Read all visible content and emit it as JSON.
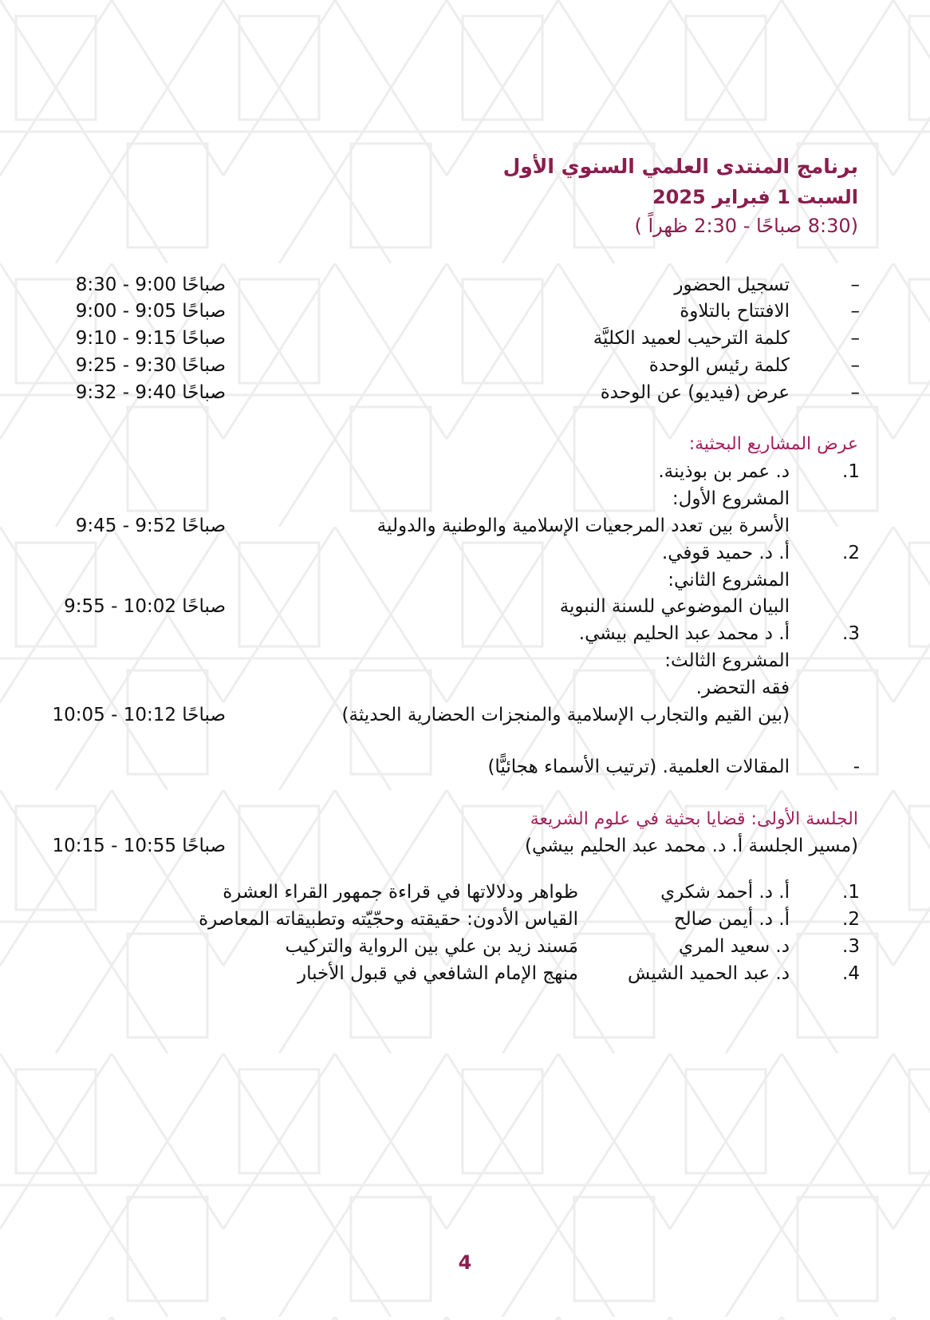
{
  "header": {
    "title": "برنامج المنتدى العلمي السنوي الأول",
    "date": "السبت 1 فبراير 2025",
    "hours": "(8:30 صباحًا - 2:30 ظهراً )"
  },
  "opening": [
    {
      "mark": "–",
      "label": "تسجيل الحضور",
      "time": "8:30 - 9:00 صباحًا"
    },
    {
      "mark": "–",
      "label": "الافتتاح بالتلاوة",
      "time": "9:00 - 9:05 صباحًا"
    },
    {
      "mark": "–",
      "label": "كلمة الترحيب لعميد الكليَّة",
      "time": "9:10 - 9:15 صباحًا"
    },
    {
      "mark": "–",
      "label": "كلمة رئيس الوحدة",
      "time": "9:25 - 9:30 صباحًا"
    },
    {
      "mark": "–",
      "label": "عرض (فيديو) عن الوحدة",
      "time": "9:32 - 9:40 صباحًا"
    }
  ],
  "projects": {
    "heading": "عرض المشاريع البحثية:",
    "items": [
      {
        "num": "1.",
        "presenter": "د. عمر بن بوذينة.",
        "project_label": "المشروع الأول:",
        "title_lines": [
          "الأسرة بين تعدد المرجعيات الإسلامية والوطنية والدولية"
        ],
        "time": "9:45 - 9:52 صباحًا"
      },
      {
        "num": "2.",
        "presenter": "أ. د. حميد قوفي.",
        "project_label": "المشروع الثاني:",
        "title_lines": [
          "البيان الموضوعي للسنة النبوية"
        ],
        "time": "9:55 - 10:02 صباحًا"
      },
      {
        "num": "3.",
        "presenter": "أ. د محمد عبد الحليم بيشي.",
        "project_label": "المشروع الثالث:",
        "title_lines": [
          "فقه التحضر.",
          "(بين القيم والتجارب الإسلامية والمنجزات الحضارية الحديثة)"
        ],
        "time": "10:05 - 10:12 صباحًا"
      }
    ]
  },
  "articles": {
    "mark": "-",
    "label": "المقالات العلمية. (ترتيب الأسماء هجائيًّا)"
  },
  "session1": {
    "heading": "الجلسة الأولى: قضايا بحثية في علوم الشريعة",
    "moderator": "(مسير الجلسة أ. د. محمد عبد الحليم بيشي)",
    "time": "10:15 - 10:55 صباحًا",
    "papers": [
      {
        "num": "1.",
        "author": "أ. د. أحمد شكري",
        "title": "ظواهر ودلالاتها في قراءة جمهور القراء العشرة"
      },
      {
        "num": "2.",
        "author": "أ. د. أيمن صالح",
        "title": "القياس الأدون: حقيقته وحجّيّته وتطبيقاته المعاصرة"
      },
      {
        "num": "3.",
        "author": "د. سعيد المري",
        "title": "مَسند زيد بن علي بين الرواية والتركيب"
      },
      {
        "num": "4.",
        "author": "د. عبد الحميد الشيش",
        "title": "منهج الإمام الشافعي في قبول الأخبار"
      }
    ]
  },
  "page_number": "4",
  "colors": {
    "title": "#8a1e4e",
    "heading": "#a3215e",
    "pattern": "#efefef"
  }
}
